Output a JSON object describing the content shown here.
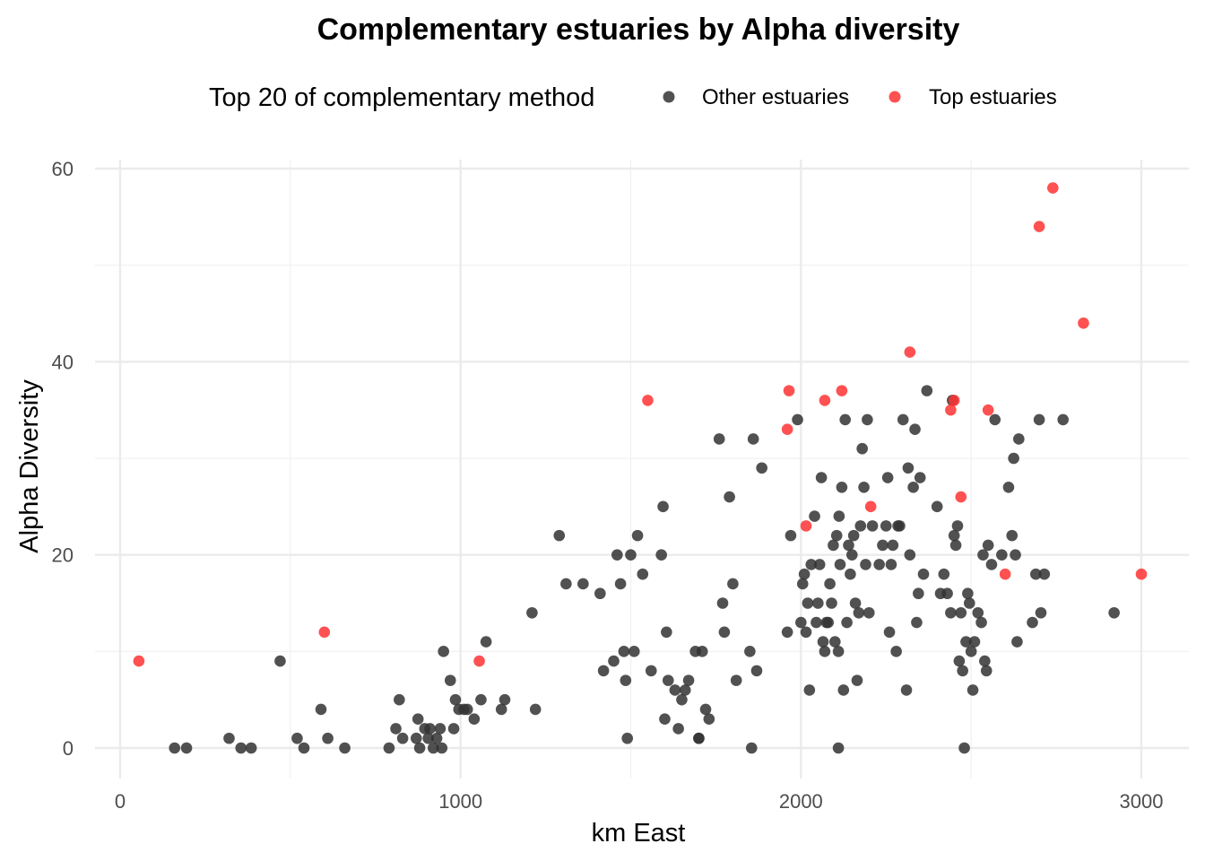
{
  "chart_data": {
    "type": "scatter",
    "title": "Complementary estuaries by Alpha diversity",
    "xlabel": "km East",
    "ylabel": "Alpha Diversity",
    "xlim": [
      -80,
      3140
    ],
    "ylim": [
      -3,
      61
    ],
    "x_ticks": [
      0,
      1000,
      2000,
      3000
    ],
    "y_ticks": [
      0,
      20,
      40,
      60
    ],
    "grid": true,
    "legend": {
      "title": "Top 20 of complementary method",
      "position": "top",
      "entries": [
        "Other estuaries",
        "Top estuaries"
      ]
    },
    "series": [
      {
        "name": "Other estuaries",
        "color": "#333333",
        "points": [
          [
            160,
            0
          ],
          [
            195,
            0
          ],
          [
            320,
            1
          ],
          [
            355,
            0
          ],
          [
            385,
            0
          ],
          [
            470,
            9
          ],
          [
            520,
            1
          ],
          [
            540,
            0
          ],
          [
            590,
            4
          ],
          [
            610,
            1
          ],
          [
            660,
            0
          ],
          [
            790,
            0
          ],
          [
            810,
            2
          ],
          [
            820,
            5
          ],
          [
            830,
            1
          ],
          [
            870,
            1
          ],
          [
            875,
            3
          ],
          [
            880,
            0
          ],
          [
            895,
            2
          ],
          [
            905,
            1
          ],
          [
            910,
            2
          ],
          [
            920,
            0
          ],
          [
            930,
            1
          ],
          [
            940,
            2
          ],
          [
            945,
            0
          ],
          [
            950,
            10
          ],
          [
            970,
            7
          ],
          [
            980,
            2
          ],
          [
            985,
            5
          ],
          [
            995,
            4
          ],
          [
            1010,
            4
          ],
          [
            1020,
            4
          ],
          [
            1040,
            3
          ],
          [
            1060,
            5
          ],
          [
            1075,
            11
          ],
          [
            1120,
            4
          ],
          [
            1130,
            5
          ],
          [
            1220,
            4
          ],
          [
            1210,
            14
          ],
          [
            1290,
            22
          ],
          [
            1310,
            17
          ],
          [
            1360,
            17
          ],
          [
            1410,
            16
          ],
          [
            1420,
            8
          ],
          [
            1450,
            9
          ],
          [
            1460,
            20
          ],
          [
            1470,
            17
          ],
          [
            1480,
            10
          ],
          [
            1485,
            7
          ],
          [
            1490,
            1
          ],
          [
            1500,
            20
          ],
          [
            1510,
            10
          ],
          [
            1520,
            22
          ],
          [
            1535,
            18
          ],
          [
            1560,
            8
          ],
          [
            1590,
            20
          ],
          [
            1595,
            25
          ],
          [
            1600,
            3
          ],
          [
            1605,
            12
          ],
          [
            1610,
            7
          ],
          [
            1630,
            6
          ],
          [
            1640,
            2
          ],
          [
            1650,
            5
          ],
          [
            1660,
            6
          ],
          [
            1670,
            7
          ],
          [
            1690,
            10
          ],
          [
            1700,
            1
          ],
          [
            1710,
            10
          ],
          [
            1720,
            4
          ],
          [
            1730,
            3
          ],
          [
            1760,
            32
          ],
          [
            1770,
            15
          ],
          [
            1775,
            12
          ],
          [
            1790,
            26
          ],
          [
            1800,
            17
          ],
          [
            1810,
            7
          ],
          [
            1850,
            10
          ],
          [
            1855,
            0
          ],
          [
            1860,
            32
          ],
          [
            1870,
            8
          ],
          [
            1885,
            29
          ],
          [
            1960,
            12
          ],
          [
            1970,
            22
          ],
          [
            1990,
            34
          ],
          [
            2000,
            13
          ],
          [
            2005,
            17
          ],
          [
            2010,
            18
          ],
          [
            2015,
            12
          ],
          [
            2020,
            15
          ],
          [
            2025,
            6
          ],
          [
            2030,
            19
          ],
          [
            2040,
            24
          ],
          [
            2045,
            13
          ],
          [
            2050,
            15
          ],
          [
            2055,
            19
          ],
          [
            2060,
            28
          ],
          [
            2065,
            11
          ],
          [
            2070,
            10
          ],
          [
            2075,
            13
          ],
          [
            2080,
            13
          ],
          [
            2085,
            17
          ],
          [
            2090,
            15
          ],
          [
            2095,
            21
          ],
          [
            2100,
            11
          ],
          [
            2105,
            22
          ],
          [
            2110,
            10
          ],
          [
            2112,
            24
          ],
          [
            2115,
            19
          ],
          [
            2120,
            27
          ],
          [
            2125,
            6
          ],
          [
            2130,
            34
          ],
          [
            2135,
            13
          ],
          [
            2140,
            21
          ],
          [
            2145,
            18
          ],
          [
            2150,
            20
          ],
          [
            2155,
            22
          ],
          [
            2160,
            15
          ],
          [
            2165,
            7
          ],
          [
            2170,
            14
          ],
          [
            2175,
            23
          ],
          [
            2180,
            31
          ],
          [
            2185,
            27
          ],
          [
            2190,
            19
          ],
          [
            2195,
            34
          ],
          [
            2200,
            14
          ],
          [
            2210,
            23
          ],
          [
            2230,
            19
          ],
          [
            2240,
            21
          ],
          [
            2250,
            23
          ],
          [
            2255,
            28
          ],
          [
            2260,
            12
          ],
          [
            2265,
            19
          ],
          [
            2270,
            21
          ],
          [
            2280,
            10
          ],
          [
            2285,
            23
          ],
          [
            2290,
            23
          ],
          [
            2300,
            34
          ],
          [
            2310,
            6
          ],
          [
            2315,
            29
          ],
          [
            2320,
            20
          ],
          [
            2330,
            27
          ],
          [
            2335,
            33
          ],
          [
            2340,
            13
          ],
          [
            2345,
            16
          ],
          [
            2350,
            28
          ],
          [
            2360,
            18
          ],
          [
            2370,
            37
          ],
          [
            2400,
            25
          ],
          [
            2410,
            16
          ],
          [
            2420,
            18
          ],
          [
            2430,
            16
          ],
          [
            2440,
            14
          ],
          [
            2445,
            36
          ],
          [
            2450,
            22
          ],
          [
            2455,
            21
          ],
          [
            2460,
            23
          ],
          [
            2465,
            9
          ],
          [
            2470,
            14
          ],
          [
            2475,
            8
          ],
          [
            2480,
            0
          ],
          [
            2485,
            11
          ],
          [
            2490,
            16
          ],
          [
            2495,
            15
          ],
          [
            2500,
            10
          ],
          [
            2505,
            6
          ],
          [
            2510,
            11
          ],
          [
            2520,
            14
          ],
          [
            2530,
            13
          ],
          [
            2535,
            20
          ],
          [
            2540,
            9
          ],
          [
            2545,
            8
          ],
          [
            2550,
            21
          ],
          [
            2560,
            19
          ],
          [
            2570,
            34
          ],
          [
            2590,
            20
          ],
          [
            2610,
            27
          ],
          [
            2620,
            22
          ],
          [
            2625,
            30
          ],
          [
            2630,
            20
          ],
          [
            2635,
            11
          ],
          [
            2640,
            32
          ],
          [
            2680,
            13
          ],
          [
            2690,
            18
          ],
          [
            2700,
            34
          ],
          [
            2705,
            14
          ],
          [
            2715,
            18
          ],
          [
            2770,
            34
          ],
          [
            2920,
            14
          ],
          [
            2110,
            0
          ],
          [
            1700,
            1
          ]
        ]
      },
      {
        "name": "Top estuaries",
        "color": "#ff3333",
        "points": [
          [
            55,
            9
          ],
          [
            600,
            12
          ],
          [
            1055,
            9
          ],
          [
            1550,
            36
          ],
          [
            1960,
            33
          ],
          [
            1965,
            37
          ],
          [
            2015,
            23
          ],
          [
            2070,
            36
          ],
          [
            2120,
            37
          ],
          [
            2205,
            25
          ],
          [
            2320,
            41
          ],
          [
            2440,
            35
          ],
          [
            2450,
            36
          ],
          [
            2470,
            26
          ],
          [
            2550,
            35
          ],
          [
            2600,
            18
          ],
          [
            2700,
            54
          ],
          [
            2740,
            58
          ],
          [
            2830,
            44
          ],
          [
            3000,
            18
          ]
        ]
      }
    ]
  }
}
